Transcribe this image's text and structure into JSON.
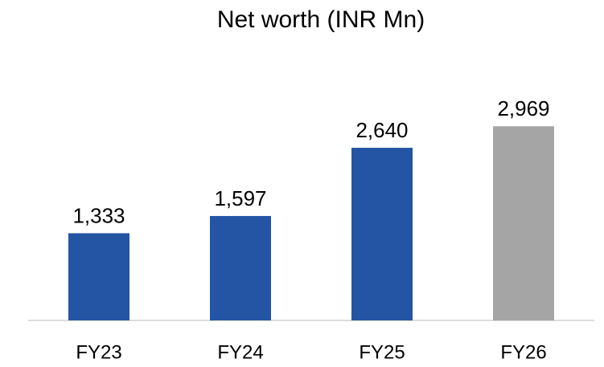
{
  "chart_data": {
    "type": "bar",
    "title": "Net worth (INR Mn)",
    "categories": [
      "FY23",
      "FY24",
      "FY25",
      "FY26"
    ],
    "values": [
      1333,
      1597,
      2640,
      2969
    ],
    "value_labels": [
      "1,333",
      "1,597",
      "2,640",
      "2,969"
    ],
    "colors": [
      "#2455a4",
      "#2455a4",
      "#2455a4",
      "#a5a5a5"
    ],
    "ylim": [
      0,
      3500
    ]
  }
}
